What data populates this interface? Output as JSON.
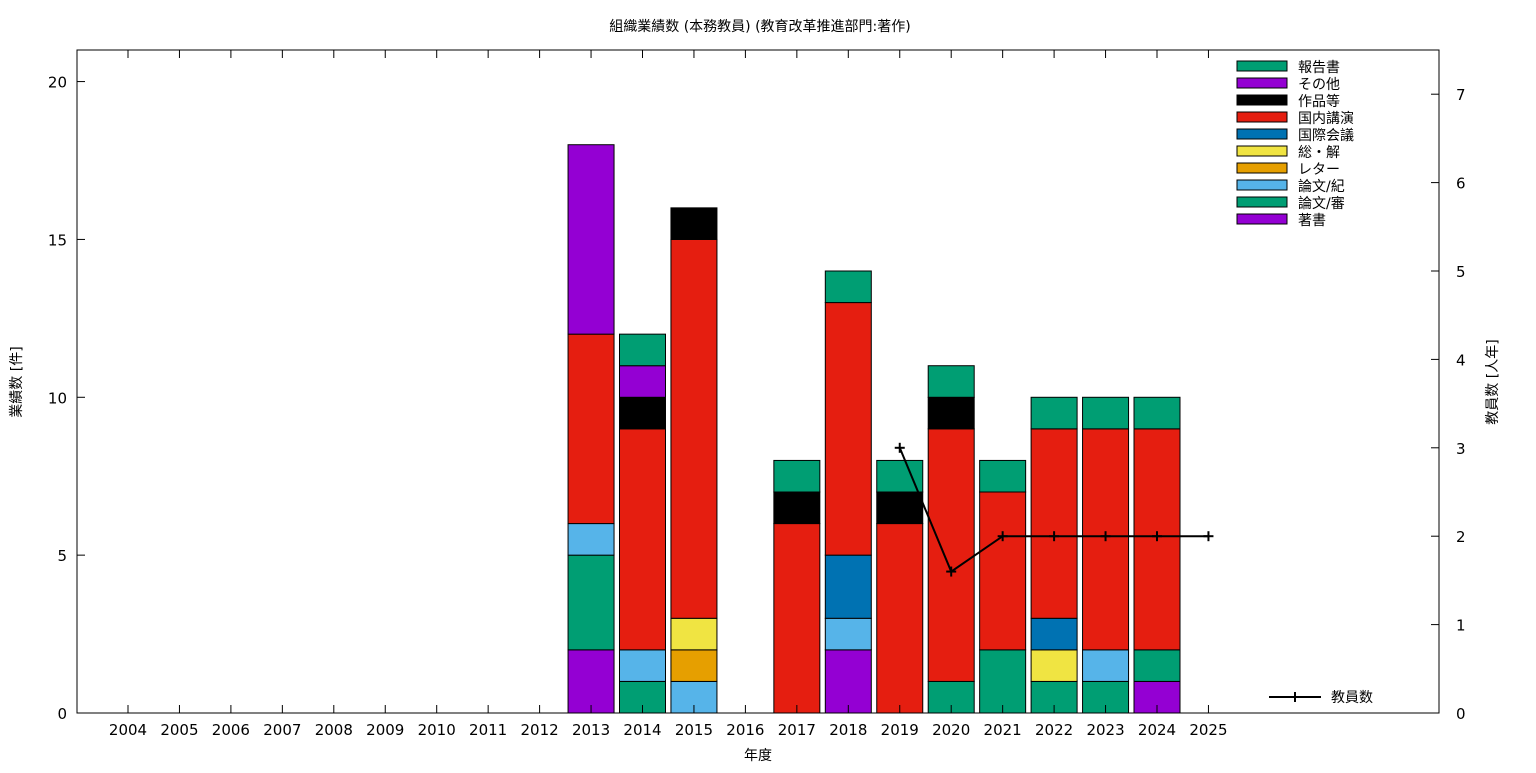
{
  "chart_data": {
    "type": "bar",
    "stacked": true,
    "title": "組織業績数 (本務教員) (教育改革推進部門:著作)",
    "xlabel": "年度",
    "ylabel": "業績数 [件]",
    "y2label": "教員数 [人年]",
    "categories": [
      "2004",
      "2005",
      "2006",
      "2007",
      "2008",
      "2009",
      "2010",
      "2011",
      "2012",
      "2013",
      "2014",
      "2015",
      "2016",
      "2017",
      "2018",
      "2019",
      "2020",
      "2021",
      "2022",
      "2023",
      "2024",
      "2025"
    ],
    "ylim": [
      0,
      21
    ],
    "yticks": [
      0,
      5,
      10,
      15,
      20
    ],
    "y2lim": [
      0,
      7.5
    ],
    "y2ticks": [
      0,
      1,
      2,
      3,
      4,
      5,
      6,
      7
    ],
    "series": [
      {
        "name": "著書",
        "color": "#9400d3",
        "values": [
          0,
          0,
          0,
          0,
          0,
          0,
          0,
          0,
          0,
          2,
          0,
          0,
          0,
          0,
          2,
          0,
          0,
          0,
          0,
          0,
          1,
          0
        ]
      },
      {
        "name": "論文/審",
        "color": "#009e73",
        "values": [
          0,
          0,
          0,
          0,
          0,
          0,
          0,
          0,
          0,
          3,
          1,
          0,
          0,
          0,
          0,
          0,
          1,
          2,
          1,
          1,
          1,
          0
        ]
      },
      {
        "name": "論文/紀",
        "color": "#56b4e9",
        "values": [
          0,
          0,
          0,
          0,
          0,
          0,
          0,
          0,
          0,
          1,
          1,
          1,
          0,
          0,
          1,
          0,
          0,
          0,
          0,
          1,
          0,
          0
        ]
      },
      {
        "name": "レター",
        "color": "#e69f00",
        "values": [
          0,
          0,
          0,
          0,
          0,
          0,
          0,
          0,
          0,
          0,
          0,
          1,
          0,
          0,
          0,
          0,
          0,
          0,
          0,
          0,
          0,
          0
        ]
      },
      {
        "name": "総・解",
        "color": "#f0e442",
        "values": [
          0,
          0,
          0,
          0,
          0,
          0,
          0,
          0,
          0,
          0,
          0,
          1,
          0,
          0,
          0,
          0,
          0,
          0,
          1,
          0,
          0,
          0
        ]
      },
      {
        "name": "国際会議",
        "color": "#0072b2",
        "values": [
          0,
          0,
          0,
          0,
          0,
          0,
          0,
          0,
          0,
          0,
          0,
          0,
          0,
          0,
          2,
          0,
          0,
          0,
          1,
          0,
          0,
          0
        ]
      },
      {
        "name": "国内講演",
        "color": "#e51e10",
        "values": [
          0,
          0,
          0,
          0,
          0,
          0,
          0,
          0,
          0,
          6,
          7,
          12,
          0,
          6,
          8,
          6,
          8,
          5,
          6,
          7,
          7,
          0
        ]
      },
      {
        "name": "作品等",
        "color": "#000000",
        "values": [
          0,
          0,
          0,
          0,
          0,
          0,
          0,
          0,
          0,
          0,
          1,
          1,
          0,
          1,
          0,
          1,
          1,
          0,
          0,
          0,
          0,
          0
        ]
      },
      {
        "name": "その他",
        "color": "#9400d3",
        "values": [
          0,
          0,
          0,
          0,
          0,
          0,
          0,
          0,
          0,
          6,
          1,
          0,
          0,
          0,
          0,
          0,
          0,
          0,
          0,
          0,
          0,
          0
        ]
      },
      {
        "name": "報告書",
        "color": "#009e73",
        "values": [
          0,
          0,
          0,
          0,
          0,
          0,
          0,
          0,
          0,
          0,
          1,
          0,
          0,
          1,
          1,
          1,
          1,
          1,
          1,
          1,
          1,
          0
        ]
      }
    ],
    "line_series": {
      "name": "教員数",
      "axis": "y2",
      "color": "#000000",
      "x": [
        "2019",
        "2020",
        "2021",
        "2022",
        "2023",
        "2024",
        "2025"
      ],
      "values": [
        3.0,
        1.6,
        2.0,
        2.0,
        2.0,
        2.0,
        2.0
      ]
    },
    "legend_position": "top-right",
    "line_legend_position": "bottom-right",
    "grid": false
  }
}
